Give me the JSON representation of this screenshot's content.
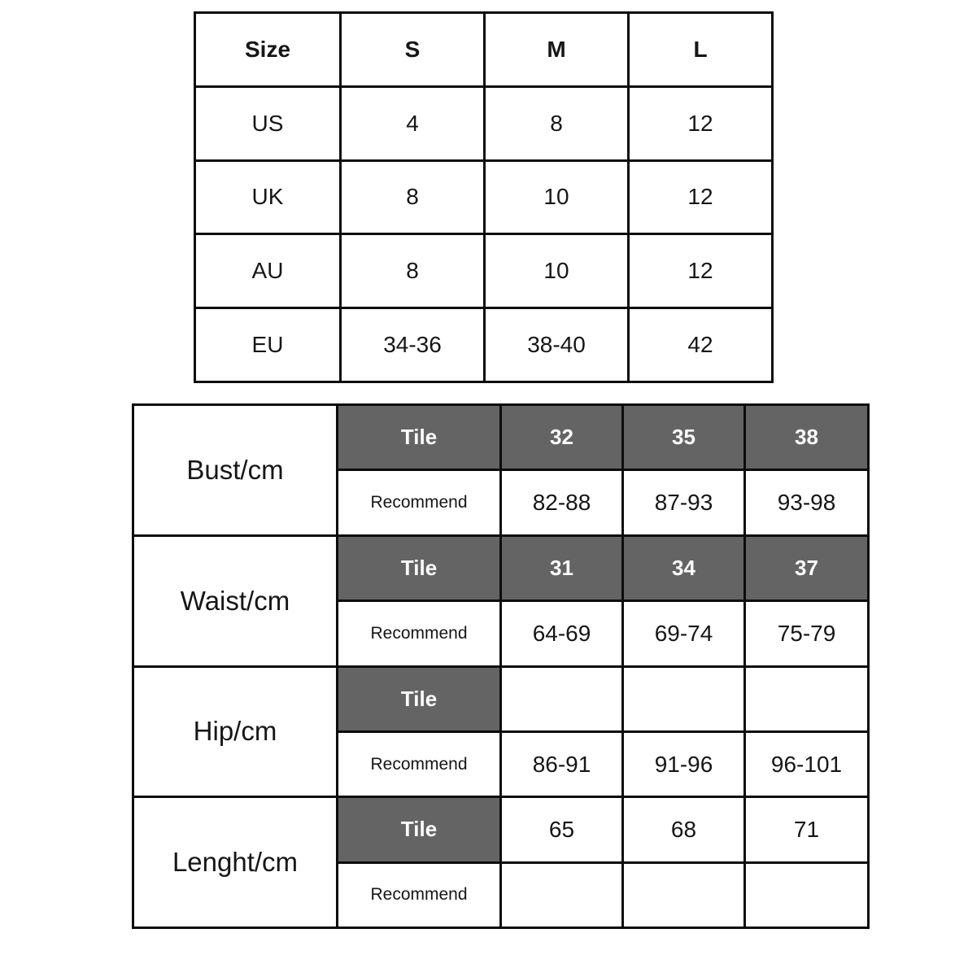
{
  "page": {
    "background": "#ffffff"
  },
  "colors": {
    "grid_line": "#0c0c0c",
    "dark_cell": "#646464",
    "dark_cell_text": "#fbfbfb",
    "text": "#161616"
  },
  "size_table": {
    "header": {
      "c0": "Size",
      "c1": "S",
      "c2": "M",
      "c3": "L"
    },
    "rows": [
      {
        "label": "US",
        "values": [
          "4",
          "8",
          "12"
        ]
      },
      {
        "label": "UK",
        "values": [
          "8",
          "10",
          "12"
        ]
      },
      {
        "label": "AU",
        "values": [
          "8",
          "10",
          "12"
        ]
      },
      {
        "label": "EU",
        "values": [
          "34-36",
          "38-40",
          "42"
        ]
      }
    ]
  },
  "measure_table": {
    "tile_label": "Tile",
    "recommend_label": "Recommend",
    "sections": [
      {
        "label": "Bust/cm",
        "tile_values": [
          "32",
          "35",
          "38"
        ],
        "recommend_values": [
          "82-88",
          "87-93",
          "93-98"
        ]
      },
      {
        "label": "Waist/cm",
        "tile_values": [
          "31",
          "34",
          "37"
        ],
        "recommend_values": [
          "64-69",
          "69-74",
          "75-79"
        ]
      },
      {
        "label": "Hip/cm",
        "tile_values": [
          "",
          "",
          ""
        ],
        "recommend_values": [
          "86-91",
          "91-96",
          "96-101"
        ]
      },
      {
        "label": "Lenght/cm",
        "tile_values": [
          "65",
          "68",
          "71"
        ],
        "recommend_values": [
          "",
          "",
          ""
        ]
      }
    ]
  }
}
